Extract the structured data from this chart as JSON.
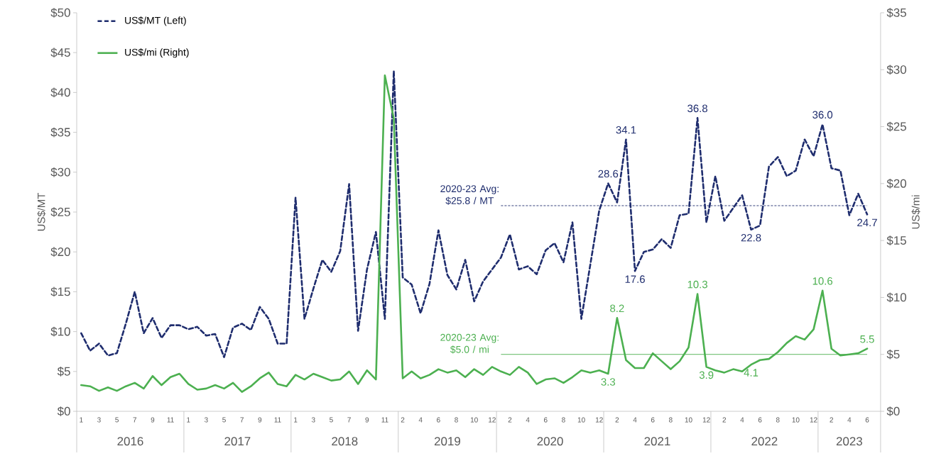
{
  "chart_data": {
    "type": "line",
    "categories": [
      "1",
      null,
      "3",
      null,
      "5",
      null,
      "7",
      null,
      "9",
      null,
      "11",
      null,
      "1",
      null,
      "3",
      null,
      "5",
      null,
      "7",
      null,
      "9",
      null,
      "11",
      null,
      "1",
      null,
      "3",
      null,
      "5",
      null,
      "7",
      null,
      "9",
      null,
      "11",
      null,
      "2",
      null,
      "4",
      null,
      "6",
      null,
      "8",
      null,
      "10",
      null,
      "12",
      null,
      "2",
      null,
      "4",
      null,
      "6",
      null,
      "8",
      null,
      "10",
      null,
      "12",
      null,
      "2",
      null,
      "4",
      null,
      "6",
      null,
      "8",
      null,
      "10",
      null,
      "12",
      null,
      "2",
      null,
      "4",
      null,
      "6",
      null,
      "8",
      null,
      "10",
      null,
      "12",
      null,
      "2",
      null,
      "4",
      null,
      "6"
    ],
    "series": [
      {
        "name": "US$/MT (Left)",
        "color": "#1f2d6e",
        "line_style": "dashed",
        "values": [
          9.8,
          7.6,
          8.5,
          7.0,
          7.3,
          11.0,
          15.0,
          9.8,
          11.7,
          9.2,
          10.8,
          10.8,
          10.3,
          10.6,
          9.5,
          9.7,
          6.8,
          10.5,
          11.0,
          10.2,
          13.1,
          11.6,
          8.5,
          8.5,
          26.8,
          11.6,
          15.4,
          19.0,
          17.5,
          20.1,
          28.5,
          10.1,
          17.8,
          22.5,
          11.6,
          42.7,
          16.8,
          15.9,
          12.3,
          16.0,
          22.7,
          17.1,
          15.3,
          19.0,
          13.8,
          16.3,
          17.8,
          19.3,
          22.2,
          17.8,
          18.2,
          17.2,
          20.2,
          21.1,
          18.7,
          23.7,
          11.6,
          18.4,
          25.2,
          28.6,
          26.2,
          34.1,
          17.6,
          20.0,
          20.3,
          21.6,
          20.5,
          24.6,
          24.8,
          36.8,
          23.7,
          29.5,
          23.9,
          25.5,
          27.1,
          22.8,
          23.3,
          30.7,
          31.9,
          29.5,
          30.2,
          34.1,
          32.0,
          36.0,
          30.5,
          30.2,
          24.6,
          27.3,
          24.7
        ],
        "value_labels": [
          null,
          null,
          null,
          null,
          null,
          null,
          null,
          null,
          null,
          null,
          null,
          null,
          null,
          null,
          null,
          null,
          null,
          null,
          null,
          null,
          null,
          null,
          null,
          null,
          null,
          null,
          null,
          null,
          null,
          null,
          null,
          null,
          null,
          null,
          null,
          null,
          null,
          null,
          null,
          null,
          null,
          null,
          null,
          null,
          null,
          null,
          null,
          null,
          null,
          null,
          null,
          null,
          null,
          null,
          null,
          null,
          null,
          null,
          null,
          "28.6",
          null,
          "34.1",
          "17.6",
          null,
          null,
          null,
          null,
          null,
          null,
          "36.8",
          null,
          null,
          null,
          null,
          null,
          "22.8",
          null,
          null,
          null,
          null,
          null,
          null,
          null,
          "36.0",
          null,
          null,
          null,
          null,
          "24.7"
        ]
      },
      {
        "name": "US$/mi (Right)",
        "color": "#4cb050",
        "line_style": "solid",
        "axis": "y2",
        "values": [
          2.3,
          2.2,
          1.8,
          2.1,
          1.8,
          2.2,
          2.5,
          2.0,
          3.1,
          2.3,
          3.0,
          3.3,
          2.4,
          1.9,
          2.0,
          2.3,
          2.0,
          2.5,
          1.7,
          2.2,
          2.9,
          3.4,
          2.4,
          2.2,
          3.2,
          2.8,
          3.3,
          3.0,
          2.7,
          2.8,
          3.5,
          2.4,
          3.6,
          2.8,
          29.5,
          25.7,
          2.9,
          3.5,
          2.9,
          3.2,
          3.7,
          3.4,
          3.6,
          3.0,
          3.7,
          3.2,
          3.9,
          3.5,
          3.2,
          3.9,
          3.4,
          2.4,
          2.8,
          2.9,
          2.5,
          3.0,
          3.6,
          3.4,
          3.6,
          3.3,
          8.2,
          4.5,
          3.8,
          3.8,
          5.1,
          4.4,
          3.7,
          4.4,
          5.6,
          10.3,
          3.9,
          3.6,
          3.4,
          3.7,
          3.5,
          4.1,
          4.5,
          4.6,
          5.2,
          6.0,
          6.6,
          6.3,
          7.2,
          10.6,
          5.5,
          4.9,
          5.0,
          5.1,
          5.5
        ],
        "value_labels": [
          null,
          null,
          null,
          null,
          null,
          null,
          null,
          null,
          null,
          null,
          null,
          null,
          null,
          null,
          null,
          null,
          null,
          null,
          null,
          null,
          null,
          null,
          null,
          null,
          null,
          null,
          null,
          null,
          null,
          null,
          null,
          null,
          null,
          null,
          null,
          null,
          null,
          null,
          null,
          null,
          null,
          null,
          null,
          null,
          null,
          null,
          null,
          null,
          null,
          null,
          null,
          null,
          null,
          null,
          null,
          null,
          null,
          null,
          null,
          "3.3",
          "8.2",
          null,
          null,
          null,
          null,
          null,
          null,
          null,
          null,
          "10.3",
          "3.9",
          null,
          null,
          null,
          null,
          "4.1",
          null,
          null,
          null,
          null,
          null,
          null,
          null,
          "10.6",
          null,
          null,
          null,
          null,
          "5.5"
        ]
      }
    ],
    "ylabel": "US$/MT",
    "y2label": "US$/mi",
    "ylim": [
      0,
      50
    ],
    "yticks": [
      {
        "value": 0,
        "label": "$0"
      },
      {
        "value": 5,
        "label": "$5"
      },
      {
        "value": 10,
        "label": "$10"
      },
      {
        "value": 15,
        "label": "$15"
      },
      {
        "value": 20,
        "label": "$20"
      },
      {
        "value": 25,
        "label": "$25"
      },
      {
        "value": 30,
        "label": "$30"
      },
      {
        "value": 35,
        "label": "$35"
      },
      {
        "value": 40,
        "label": "$40"
      },
      {
        "value": 45,
        "label": "$45"
      },
      {
        "value": 50,
        "label": "$50"
      }
    ],
    "y2lim": [
      0,
      35
    ],
    "y2ticks": [
      {
        "value": 0,
        "label": "$0"
      },
      {
        "value": 5,
        "label": "$5"
      },
      {
        "value": 10,
        "label": "$10"
      },
      {
        "value": 15,
        "label": "$15"
      },
      {
        "value": 20,
        "label": "$20"
      },
      {
        "value": 25,
        "label": "$25"
      },
      {
        "value": 30,
        "label": "$30"
      },
      {
        "value": 35,
        "label": "$35"
      }
    ],
    "ref_lines": [
      {
        "axis": "y",
        "value": 25.8,
        "label": "2020-23 Avg: $25.8 / MT",
        "color": "#1f2d6e",
        "line_style": "dashed"
      },
      {
        "axis": "y2",
        "value": 5.0,
        "label": "2020-23 Avg: $5.0 / mi",
        "color": "#4cb050",
        "line_style": "solid"
      }
    ],
    "annotations": [
      "2016",
      "2017",
      "2018",
      "2019",
      "2020",
      "2021",
      "2022",
      "2023"
    ],
    "legend": "top left"
  }
}
